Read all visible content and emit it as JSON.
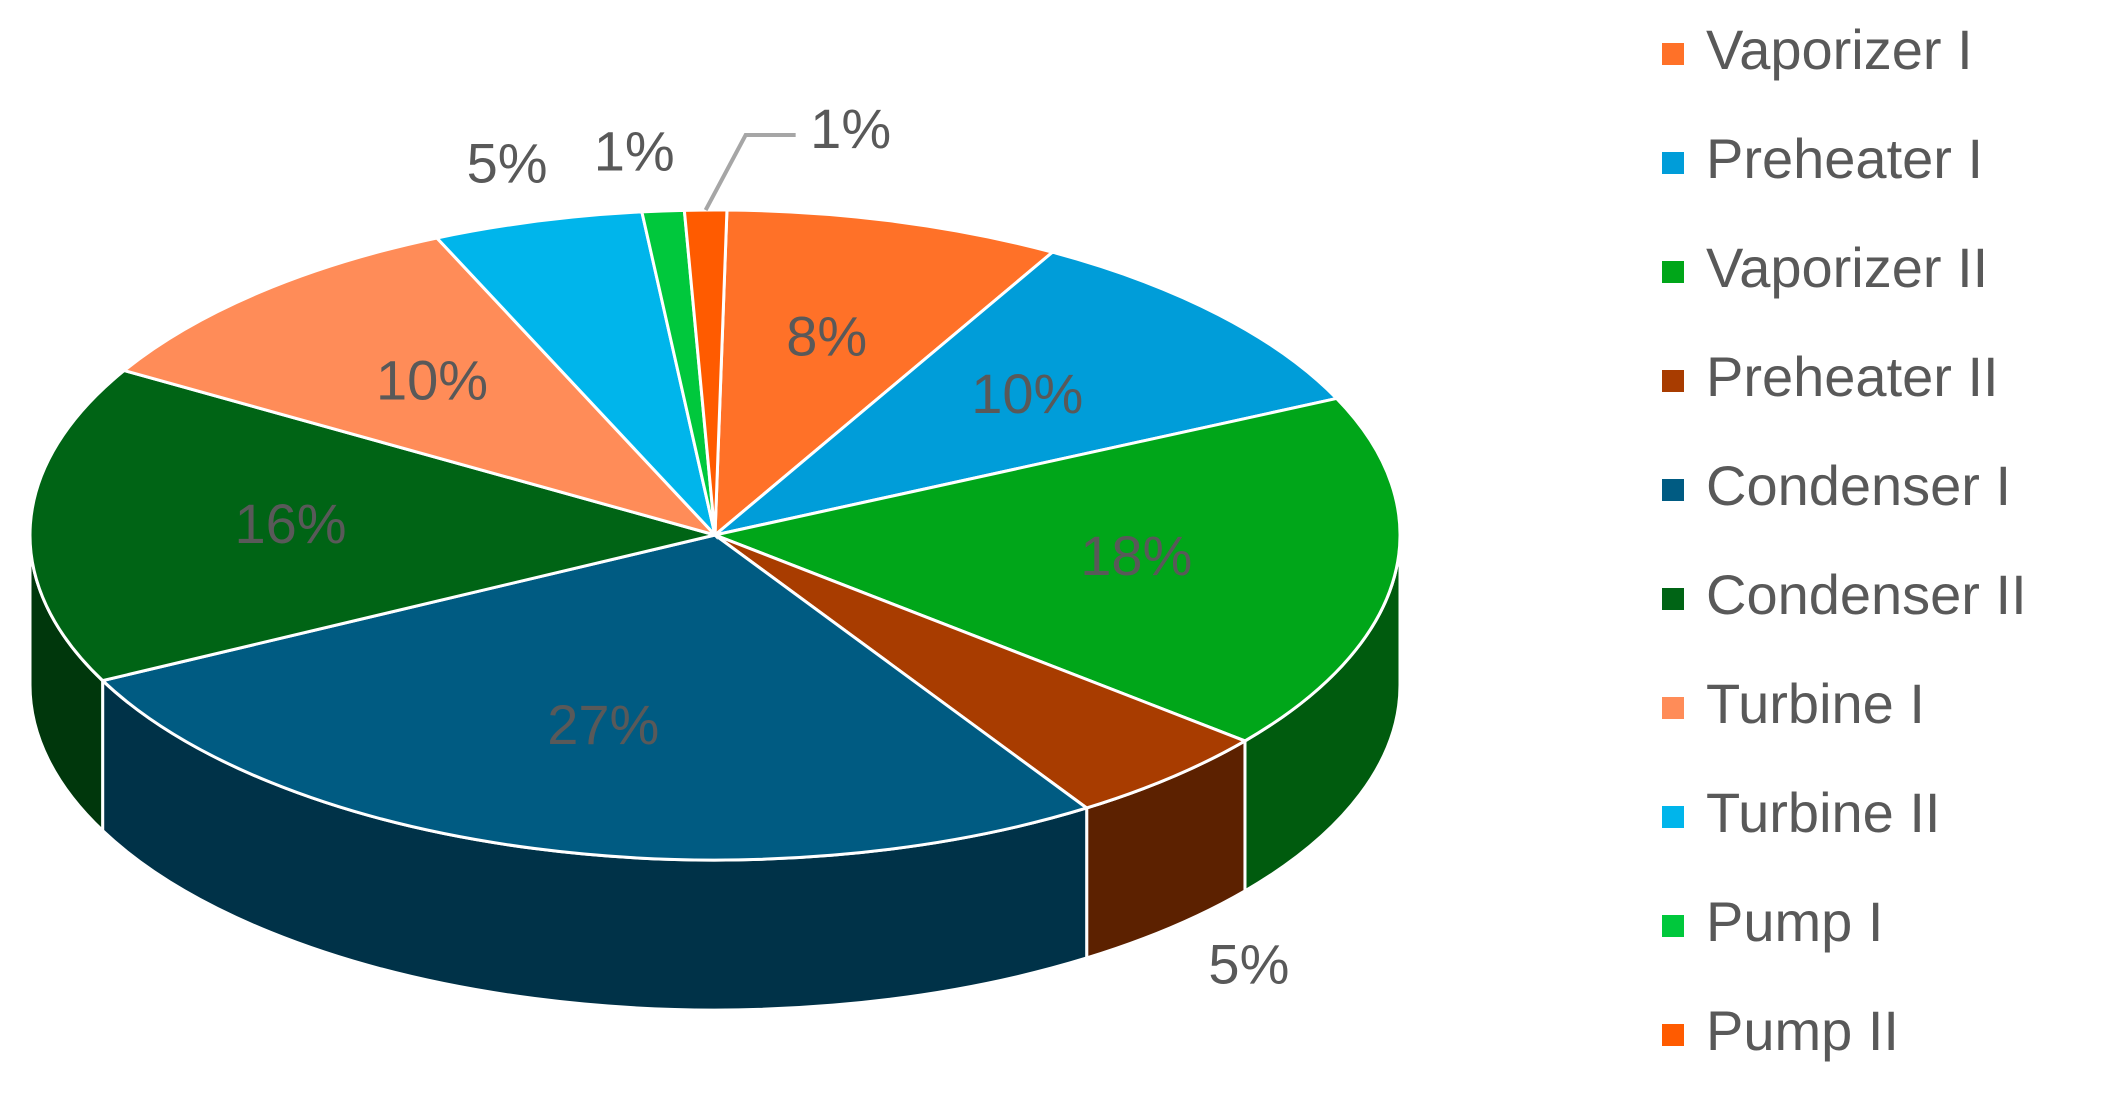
{
  "chart_data": {
    "type": "pie3d",
    "categories": [
      "Vaporizer I",
      "Preheater I",
      "Vaporizer II",
      "Preheater II",
      "Condenser I",
      "Condenser II",
      "Turbine I",
      "Turbine II",
      "Pump I",
      "Pump II"
    ],
    "values": [
      8,
      10,
      18,
      5,
      27,
      16,
      10,
      5,
      1,
      1
    ],
    "value_labels": [
      "8%",
      "10%",
      "18%",
      "5%",
      "27%",
      "16%",
      "10%",
      "5%",
      "1%",
      "1%"
    ],
    "colors": [
      "#ff7128",
      "#009dd9",
      "#00a619",
      "#a83c00",
      "#005b82",
      "#006415",
      "#ff8c58",
      "#00b5eb",
      "#00c83c",
      "#ff5b00"
    ],
    "legend": "right"
  }
}
